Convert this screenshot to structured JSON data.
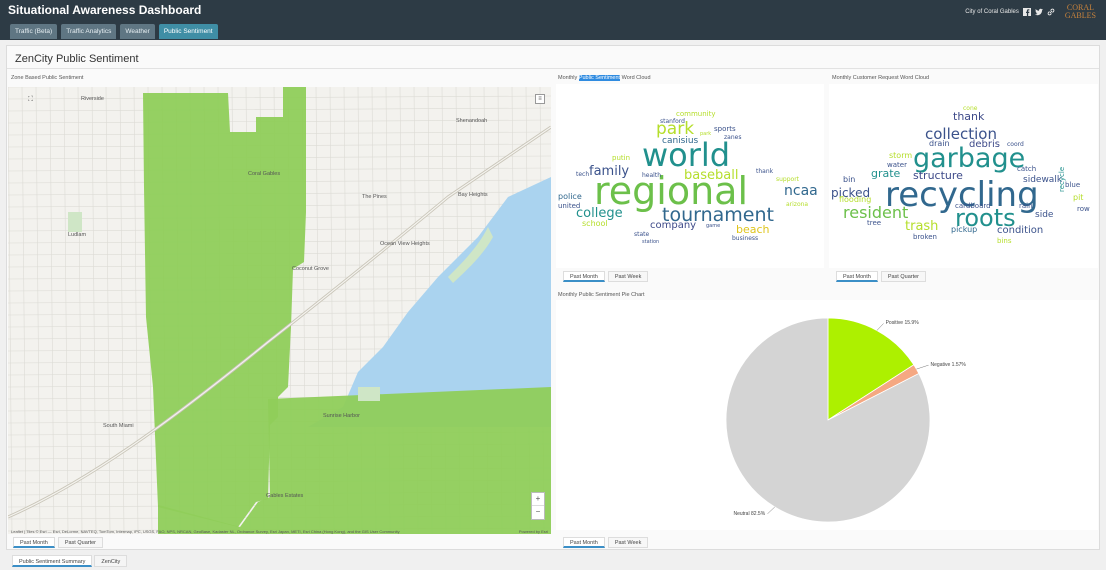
{
  "header": {
    "title": "Situational Awareness Dashboard",
    "tabs": [
      {
        "label": "Traffic (Beta)",
        "active": false
      },
      {
        "label": "Traffic Analytics",
        "active": false
      },
      {
        "label": "Weather",
        "active": false
      },
      {
        "label": "Public Sentiment",
        "active": true
      }
    ],
    "city_link": "City of Coral Gables",
    "logo_line1": "CORAL",
    "logo_line2": "GABLES",
    "social_icons": [
      "facebook-icon",
      "twitter-icon",
      "link-icon"
    ]
  },
  "page": {
    "title": "ZenCity Public Sentiment"
  },
  "map": {
    "label": "Zone Based Public Sentiment",
    "zoom_in": "+",
    "zoom_out": "−",
    "layers_icon": "≡",
    "fill_color": "#8fcd5a",
    "place_labels": [
      "Riverside",
      "Shenandoah",
      "Coral Gables",
      "The Pines",
      "Bay Heights",
      "Ludlam",
      "Ocean View Heights",
      "Coconut Grove",
      "Sunrise Harbor",
      "South Miami",
      "Gables Estates"
    ],
    "attribution": "Leaflet | Tiles © Esri — Esri, DeLorme, NAVTEQ, TomTom, Intermap, iPC, USGS, FAO, NPS, NRCAN, GeoBase, Kadaster NL, Ordnance Survey, Esri Japan, METI, Esri China (Hong Kong), and the GIS User Community",
    "attribution_right": "Powered by Esri",
    "tabs": [
      {
        "label": "Past Month",
        "active": true
      },
      {
        "label": "Past Quarter",
        "active": false
      }
    ]
  },
  "public_cloud": {
    "label_prefix": "Monthly ",
    "label_highlight": "Public Sentiment",
    "label_suffix": " Word Cloud",
    "words": [
      {
        "text": "regional",
        "size": 38,
        "color": "#6cc04a"
      },
      {
        "text": "world",
        "size": 32,
        "color": "#21908d"
      },
      {
        "text": "tournament",
        "size": 19,
        "color": "#31688e"
      },
      {
        "text": "park",
        "size": 17,
        "color": "#b5de2b"
      },
      {
        "text": "baseball",
        "size": 13,
        "color": "#b5de2b"
      },
      {
        "text": "family",
        "size": 13,
        "color": "#3b528b"
      },
      {
        "text": "college",
        "size": 13,
        "color": "#21908d"
      },
      {
        "text": "ncaa",
        "size": 14,
        "color": "#31688e"
      },
      {
        "text": "beach",
        "size": 11,
        "color": "#dfc51c"
      },
      {
        "text": "company",
        "size": 10,
        "color": "#3e4a89"
      },
      {
        "text": "canisius",
        "size": 9,
        "color": "#31688e"
      },
      {
        "text": "police",
        "size": 8,
        "color": "#31688e"
      },
      {
        "text": "united",
        "size": 7,
        "color": "#3b528b"
      },
      {
        "text": "school",
        "size": 8,
        "color": "#b5de2b"
      },
      {
        "text": "community",
        "size": 7,
        "color": "#b5de2b"
      },
      {
        "text": "stanford",
        "size": 6,
        "color": "#3b528b"
      },
      {
        "text": "sports",
        "size": 7,
        "color": "#3b528b"
      },
      {
        "text": "zanes",
        "size": 6,
        "color": "#3b528b"
      },
      {
        "text": "putin",
        "size": 7,
        "color": "#b5de2b"
      },
      {
        "text": "tech",
        "size": 6,
        "color": "#3b528b"
      },
      {
        "text": "support",
        "size": 6,
        "color": "#b5de2b"
      },
      {
        "text": "arizona",
        "size": 6,
        "color": "#b5de2b"
      },
      {
        "text": "health",
        "size": 6,
        "color": "#3b528b"
      },
      {
        "text": "thank",
        "size": 6,
        "color": "#3b528b"
      },
      {
        "text": "business",
        "size": 6,
        "color": "#3b528b"
      },
      {
        "text": "state",
        "size": 6,
        "color": "#3b528b"
      },
      {
        "text": "station",
        "size": 5,
        "color": "#3b528b"
      },
      {
        "text": "game",
        "size": 5,
        "color": "#3b528b"
      },
      {
        "text": "park",
        "size": 5,
        "color": "#b5de2b"
      }
    ],
    "tabs": [
      {
        "label": "Past Month",
        "active": true
      },
      {
        "label": "Past Week",
        "active": false
      }
    ]
  },
  "request_cloud": {
    "label": "Monthly Customer Request Word Cloud",
    "words": [
      {
        "text": "recycling",
        "size": 34,
        "color": "#31688e"
      },
      {
        "text": "garbage",
        "size": 27,
        "color": "#21908d"
      },
      {
        "text": "roots",
        "size": 24,
        "color": "#21908d"
      },
      {
        "text": "resident",
        "size": 16,
        "color": "#6cc04a"
      },
      {
        "text": "collection",
        "size": 15,
        "color": "#3b528b"
      },
      {
        "text": "trash",
        "size": 13,
        "color": "#b5de2b"
      },
      {
        "text": "structure",
        "size": 11,
        "color": "#3e4a89"
      },
      {
        "text": "picked",
        "size": 12,
        "color": "#3b528b"
      },
      {
        "text": "thank",
        "size": 11,
        "color": "#3e4a89"
      },
      {
        "text": "grate",
        "size": 11,
        "color": "#21908d"
      },
      {
        "text": "debris",
        "size": 10,
        "color": "#3e4a89"
      },
      {
        "text": "condition",
        "size": 10,
        "color": "#3b528b"
      },
      {
        "text": "sidewalk",
        "size": 9,
        "color": "#3b528b"
      },
      {
        "text": "drain",
        "size": 8,
        "color": "#3b528b"
      },
      {
        "text": "storm",
        "size": 8,
        "color": "#b5de2b"
      },
      {
        "text": "side",
        "size": 9,
        "color": "#3b528b"
      },
      {
        "text": "cardboard",
        "size": 7,
        "color": "#3b528b"
      },
      {
        "text": "pickup",
        "size": 8,
        "color": "#31688e"
      },
      {
        "text": "broken",
        "size": 7,
        "color": "#3b528b"
      },
      {
        "text": "flooding",
        "size": 8,
        "color": "#b5de2b"
      },
      {
        "text": "bin",
        "size": 8,
        "color": "#3b528b"
      },
      {
        "text": "water",
        "size": 7,
        "color": "#3b528b"
      },
      {
        "text": "rain",
        "size": 7,
        "color": "#3b528b"
      },
      {
        "text": "pit",
        "size": 8,
        "color": "#b5de2b"
      },
      {
        "text": "catch",
        "size": 7,
        "color": "#3b528b"
      },
      {
        "text": "blue",
        "size": 7,
        "color": "#3b528b"
      },
      {
        "text": "row",
        "size": 7,
        "color": "#3b528b"
      },
      {
        "text": "tree",
        "size": 7,
        "color": "#3b528b"
      },
      {
        "text": "bins",
        "size": 7,
        "color": "#b5de2b"
      },
      {
        "text": "coord",
        "size": 6,
        "color": "#3b528b"
      },
      {
        "text": "cone",
        "size": 6,
        "color": "#b5de2b"
      },
      {
        "text": "recycle",
        "size": 7,
        "color": "#21908d"
      }
    ],
    "tabs": [
      {
        "label": "Past Month",
        "active": true
      },
      {
        "label": "Past Quarter",
        "active": false
      }
    ]
  },
  "pie": {
    "label": "Monthly Public Sentiment Pie Chart",
    "tabs": [
      {
        "label": "Past Month",
        "active": true
      },
      {
        "label": "Past Week",
        "active": false
      }
    ]
  },
  "chart_data": {
    "type": "pie",
    "labels": [
      "Positive",
      "Negative",
      "Neutral"
    ],
    "values": [
      15.9,
      1.57,
      82.5
    ],
    "slice_labels": [
      "Positive 15.9%",
      "Negative 1.57%",
      "Neutral 82.5%"
    ],
    "colors": [
      "#adf000",
      "#f5a882",
      "#d4d4d4"
    ]
  },
  "footer": {
    "tabs": [
      {
        "label": "Public Sentiment Summary",
        "active": true
      },
      {
        "label": "ZenCity",
        "active": false
      }
    ]
  }
}
